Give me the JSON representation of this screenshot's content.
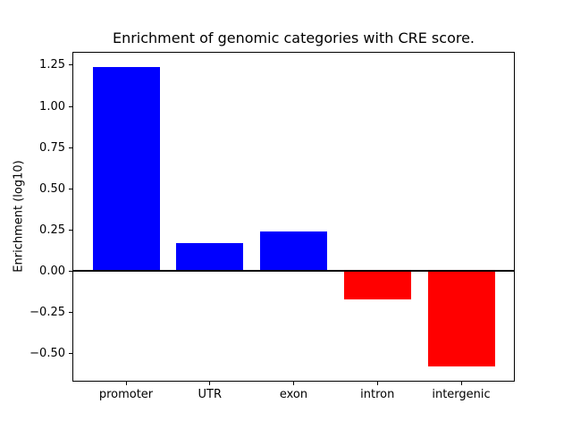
{
  "figure": {
    "background_color": "#ffffff"
  },
  "chart_data": {
    "type": "bar",
    "title": "Enrichment of genomic categories with CRE score.",
    "xlabel": "",
    "ylabel": "Enrichment (log10)",
    "categories": [
      "promoter",
      "UTR",
      "exon",
      "intron",
      "intergenic"
    ],
    "values": [
      1.24,
      0.17,
      0.24,
      -0.17,
      -0.58
    ],
    "bar_colors": [
      "#0000ff",
      "#0000ff",
      "#0000ff",
      "#ff0000",
      "#ff0000"
    ],
    "positive_color": "#0000ff",
    "negative_color": "#ff0000",
    "bar_width": 0.8,
    "xlim": [
      -0.64,
      4.64
    ],
    "ylim": [
      -0.671,
      1.331
    ],
    "yticks": [
      1.25,
      1.0,
      0.75,
      0.5,
      0.25,
      0.0,
      -0.25,
      -0.5
    ],
    "ytick_labels": [
      "1.25",
      "1.00",
      "0.75",
      "0.50",
      "0.25",
      "0.00",
      "−0.25",
      "−0.50"
    ],
    "zero_line": true,
    "zero_line_color": "#000000",
    "grid": false,
    "legend": null,
    "spine_color": "#000000",
    "text_color": "#000000"
  }
}
